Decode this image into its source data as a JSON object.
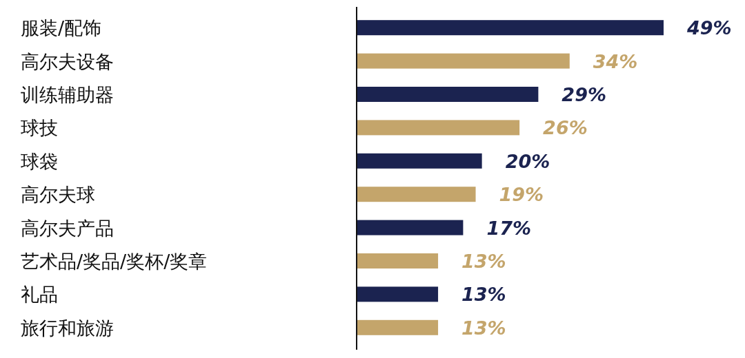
{
  "chart_data": {
    "type": "bar",
    "orientation": "horizontal",
    "categories": [
      "服装/配饰",
      "高尔夫设备",
      "训练辅助器",
      "球技",
      "球袋",
      "高尔夫球",
      "高尔夫产品",
      "艺术品/奖品/奖杯/奖章",
      "礼品",
      "旅行和旅游"
    ],
    "values": [
      49,
      34,
      29,
      26,
      20,
      19,
      17,
      13,
      13,
      13
    ],
    "colors": [
      "#1b2350",
      "#c4a56b",
      "#1b2350",
      "#c4a56b",
      "#1b2350",
      "#c4a56b",
      "#1b2350",
      "#c4a56b",
      "#1b2350",
      "#c4a56b"
    ],
    "value_labels": [
      "49%",
      "34%",
      "29%",
      "26%",
      "20%",
      "19%",
      "17%",
      "13%",
      "13%",
      "13%"
    ]
  }
}
